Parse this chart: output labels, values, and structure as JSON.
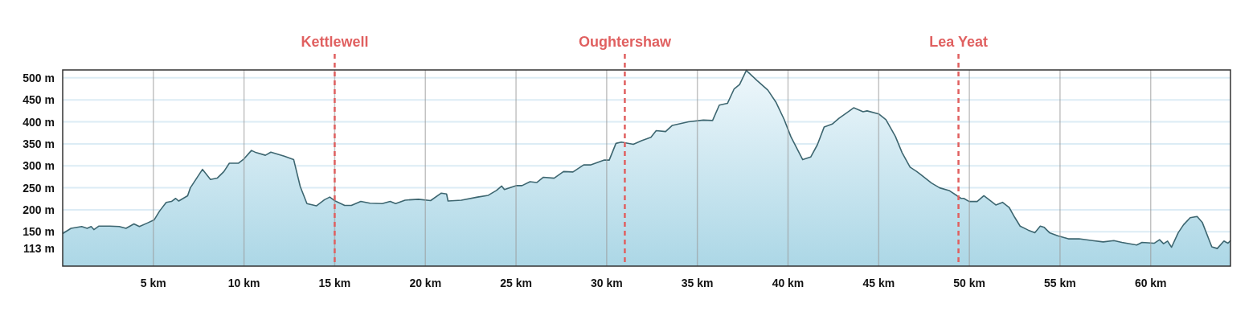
{
  "chart_data": {
    "type": "area",
    "x": [
      0,
      0.46,
      1.05,
      1.35,
      1.57,
      1.72,
      2.0,
      2.6,
      3.12,
      3.49,
      3.93,
      4.23,
      4.67,
      5.04,
      5.34,
      5.71,
      6.0,
      6.23,
      6.4,
      6.89,
      7.04,
      7.71,
      8.15,
      8.52,
      8.89,
      9.19,
      9.7,
      10.0,
      10.41,
      10.67,
      11.18,
      11.48,
      12.22,
      12.74,
      13.1,
      13.47,
      13.99,
      14.44,
      14.73,
      15.03,
      15.55,
      15.92,
      16.44,
      16.95,
      17.62,
      18.06,
      18.36,
      18.88,
      19.62,
      20.29,
      20.88,
      21.17,
      21.25,
      21.99,
      22.88,
      23.47,
      23.92,
      24.21,
      24.36,
      25,
      25.33,
      25.77,
      26.14,
      26.51,
      27.1,
      27.62,
      28.14,
      28.73,
      29.1,
      29.84,
      30.14,
      30.51,
      30.81,
      31.47,
      31.92,
      32.44,
      32.73,
      33.25,
      33.62,
      34.51,
      35.33,
      35.84,
      36.21,
      36.66,
      37.03,
      37.33,
      37.7,
      38.29,
      38.89,
      39.33,
      39.78,
      40.16,
      40.81,
      41.25,
      41.62,
      41.99,
      42.44,
      42.81,
      43.25,
      43.62,
      44.14,
      44.36,
      45,
      45.4,
      45.92,
      46.29,
      46.73,
      47.1,
      47.32,
      47.91,
      48.36,
      48.88,
      49.54,
      49.69,
      49.99,
      50.43,
      50.8,
      51.46,
      51.83,
      52.2,
      52.5,
      52.8,
      53.24,
      53.61,
      53.91,
      54.13,
      54.42,
      54.87,
      55.46,
      56.05,
      56.79,
      57.38,
      57.97,
      58.41,
      59.23,
      59.52,
      60.19,
      60.49,
      60.71,
      60.93,
      61.15,
      61.52,
      61.81,
      62.18,
      62.56,
      62.85,
      63.37,
      63.67,
      64.04,
      64.26,
      64.4
    ],
    "series": [
      {
        "color": "#3d6670",
        "values": [
          146,
          158,
          162,
          158,
          162,
          155,
          163,
          163,
          162,
          158,
          168,
          162,
          170,
          177,
          197,
          217,
          219,
          226,
          220,
          232,
          250,
          292,
          269,
          272,
          287,
          306,
          306,
          316,
          335,
          330,
          324,
          331,
          322,
          314,
          253,
          214,
          209,
          223,
          229,
          220,
          210,
          210,
          219,
          215,
          214,
          219,
          214,
          222,
          224,
          221,
          238,
          236,
          220,
          222,
          229,
          233,
          244,
          254,
          246,
          255,
          255,
          264,
          262,
          274,
          272,
          287,
          286,
          302,
          302,
          313,
          313,
          351,
          354,
          349,
          357,
          365,
          380,
          378,
          392,
          400,
          404,
          403,
          438,
          442,
          475,
          485,
          517,
          494,
          472,
          445,
          406,
          366,
          314,
          320,
          348,
          388,
          395,
          408,
          421,
          432,
          423,
          425,
          418,
          405,
          367,
          330,
          297,
          287,
          280,
          261,
          250,
          244,
          226,
          226,
          219,
          219,
          232,
          211,
          217,
          205,
          183,
          163,
          154,
          148,
          163,
          160,
          148,
          141,
          134,
          134,
          130,
          127,
          130,
          126,
          120,
          126,
          124,
          132,
          123,
          129,
          115,
          148,
          166,
          182,
          185,
          171,
          116,
          112,
          129,
          124,
          130
        ]
      }
    ],
    "xlim": [
      0,
      64.4
    ],
    "ylim": [
      72,
      518
    ],
    "xticks": [
      {
        "value": 5,
        "label": "5 km"
      },
      {
        "value": 10,
        "label": "10 km"
      },
      {
        "value": 15,
        "label": "15 km"
      },
      {
        "value": 20,
        "label": "20 km"
      },
      {
        "value": 25,
        "label": "25 km"
      },
      {
        "value": 30,
        "label": "30 km"
      },
      {
        "value": 35,
        "label": "35 km"
      },
      {
        "value": 40,
        "label": "40 km"
      },
      {
        "value": 45,
        "label": "45 km"
      },
      {
        "value": 50,
        "label": "50 km"
      },
      {
        "value": 55,
        "label": "55 km"
      },
      {
        "value": 60,
        "label": "60 km"
      }
    ],
    "yticks": [
      {
        "value": 113,
        "label": "113 m"
      },
      {
        "value": 150,
        "label": "150 m"
      },
      {
        "value": 200,
        "label": "200 m"
      },
      {
        "value": 250,
        "label": "250 m"
      },
      {
        "value": 300,
        "label": "300 m"
      },
      {
        "value": 350,
        "label": "350 m"
      },
      {
        "value": 400,
        "label": "400 m"
      },
      {
        "value": 450,
        "label": "450 m"
      },
      {
        "value": 500,
        "label": "500 m"
      }
    ],
    "grid": true,
    "ref_lines": [
      {
        "axis": "x",
        "value": 15,
        "label": "Kettlewell",
        "color": "#e06060",
        "line_style": "dashed"
      },
      {
        "axis": "x",
        "value": 31,
        "label": "Oughtershaw",
        "color": "#e06060",
        "line_style": "dashed"
      },
      {
        "axis": "x",
        "value": 49.4,
        "label": "Lea Yeat",
        "color": "#e06060",
        "line_style": "dashed"
      }
    ]
  }
}
